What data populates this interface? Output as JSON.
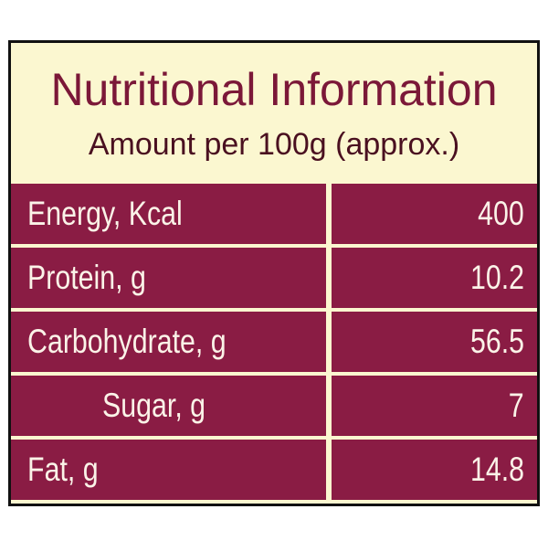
{
  "header": {
    "title": "Nutritional Information",
    "subtitle": "Amount per 100g (approx.)"
  },
  "table": {
    "rows": [
      [
        "Energy, Kcal",
        "400"
      ],
      [
        "Protein, g",
        "10.2"
      ],
      [
        "Carbohydrate, g",
        "56.5"
      ],
      [
        "Sugar, g",
        "7"
      ],
      [
        "Fat, g",
        "14.8"
      ]
    ]
  }
}
